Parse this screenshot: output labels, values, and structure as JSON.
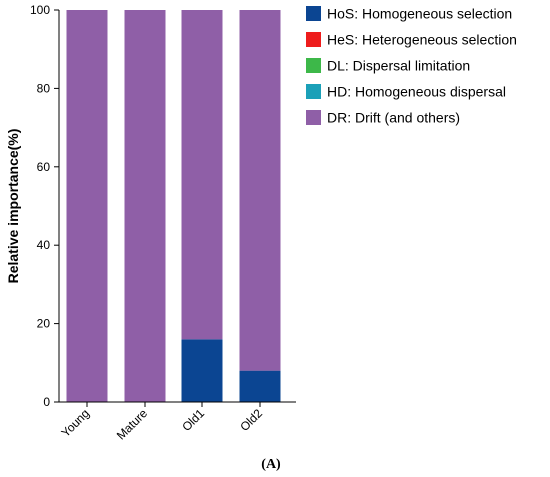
{
  "chart_data": {
    "type": "bar",
    "stacked": true,
    "categories": [
      "Young",
      "Mature",
      "Old1",
      "Old2"
    ],
    "series": [
      {
        "name": "HoS: Homogeneous selection",
        "color": "#0b4592",
        "values": [
          0,
          0,
          16,
          8
        ]
      },
      {
        "name": "HeS: Heterogeneous selection",
        "color": "#ee1c1c",
        "values": [
          0,
          0,
          0,
          0
        ]
      },
      {
        "name": "DL: Dispersal limitation",
        "color": "#3db849",
        "values": [
          0,
          0,
          0,
          0
        ]
      },
      {
        "name": "HD: Homogeneous dispersal",
        "color": "#1ba0b8",
        "values": [
          0,
          0,
          0,
          0
        ]
      },
      {
        "name": "DR: Drift (and others)",
        "color": "#8f5fa7",
        "values": [
          100,
          100,
          84,
          92
        ]
      }
    ],
    "ylabel": "Relative importance(%)",
    "xlabel": "",
    "ylim": [
      0,
      100
    ],
    "yticks": [
      0,
      20,
      40,
      60,
      80,
      100
    ],
    "grid": false,
    "legend_position": "right",
    "panel_label": "(A)"
  }
}
